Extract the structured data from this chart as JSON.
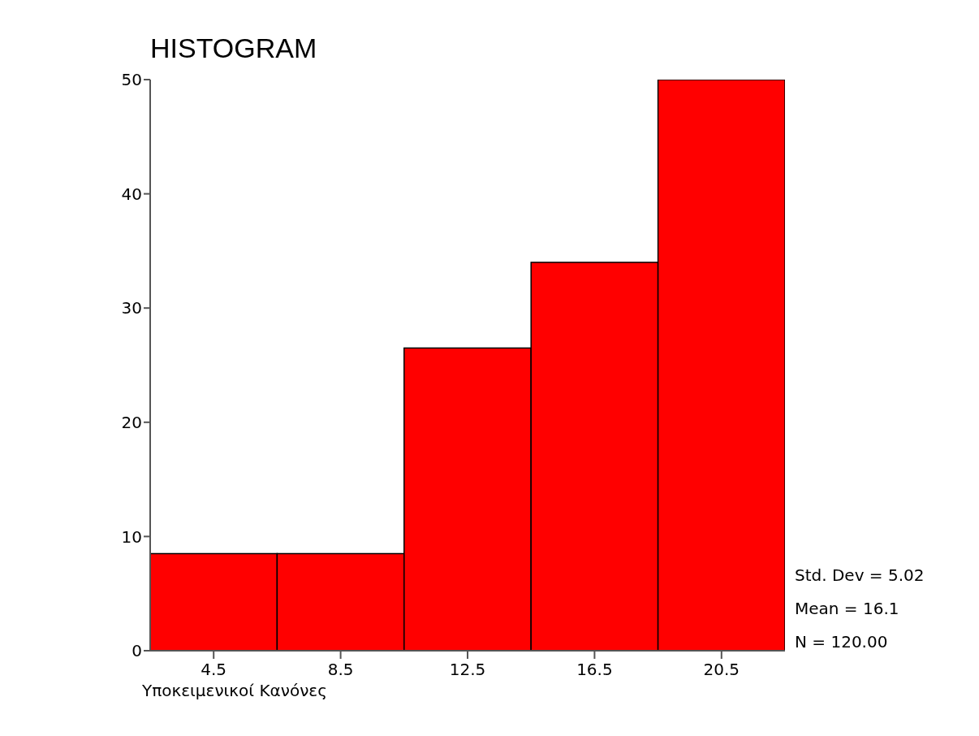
{
  "chart_data": {
    "type": "histogram",
    "title": "HISTOGRAM",
    "xlabel": "Υποκειμενικοί Κανόνες",
    "bins": [
      2.5,
      6.5,
      10.5,
      14.5,
      18.5,
      22.5
    ],
    "values": [
      8.5,
      8.5,
      26.5,
      34,
      50
    ],
    "color": "#ff0000",
    "xlim": [
      2.5,
      22.5
    ],
    "xticks": [
      4.5,
      8.5,
      12.5,
      16.5,
      20.5
    ],
    "ylim": [
      0,
      50
    ],
    "yticks": [
      0,
      10,
      20,
      30,
      40,
      50
    ],
    "grid": false,
    "annotations": [
      "Std. Dev = 5.02",
      "Mean = 16.1",
      "N = 120.00"
    ]
  }
}
